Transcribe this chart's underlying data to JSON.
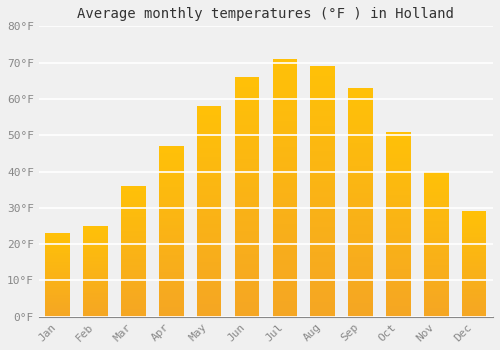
{
  "title": "Average monthly temperatures (°F ) in Holland",
  "months": [
    "Jan",
    "Feb",
    "Mar",
    "Apr",
    "May",
    "Jun",
    "Jul",
    "Aug",
    "Sep",
    "Oct",
    "Nov",
    "Dec"
  ],
  "values": [
    23,
    25,
    36,
    47,
    58,
    66,
    71,
    69,
    63,
    51,
    40,
    29
  ],
  "bar_color_top": "#FFC107",
  "bar_color_bottom": "#F5A623",
  "ylim": [
    0,
    80
  ],
  "yticks": [
    0,
    10,
    20,
    30,
    40,
    50,
    60,
    70,
    80
  ],
  "ytick_labels": [
    "0°F",
    "10°F",
    "20°F",
    "30°F",
    "40°F",
    "50°F",
    "60°F",
    "70°F",
    "80°F"
  ],
  "background_color": "#f0f0f0",
  "grid_color": "#ffffff",
  "title_fontsize": 10,
  "tick_fontsize": 8,
  "tick_color": "#888888"
}
